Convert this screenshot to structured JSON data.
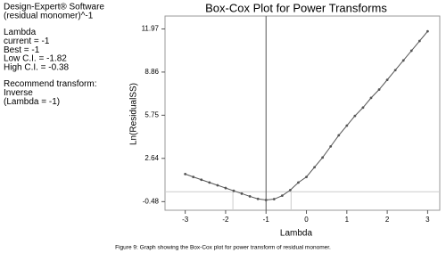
{
  "side_text": [
    [
      "Design-Expert® Software",
      "(residual monomer)^-1"
    ],
    [
      "Lambda",
      "current = -1",
      "Best = -1",
      "Low C.I. = -1.82",
      "High C.I. = -0.38"
    ],
    [
      "Recommend transform:",
      "Inverse",
      "(Lambda = -1)"
    ]
  ],
  "caption": "Figure 9: Graph showing the Box-Cox plot for power transform of residual monomer.",
  "chart_data": {
    "type": "line",
    "title": "Box-Cox Plot for Power Transforms",
    "x_label": "Lambda",
    "y_label": "Ln(ResidualSS)",
    "x": [
      -3,
      -2.8,
      -2.6,
      -2.4,
      -2.2,
      -2,
      -1.8,
      -1.6,
      -1.4,
      -1.2,
      -1,
      -0.8,
      -0.6,
      -0.4,
      -0.2,
      0,
      0.2,
      0.4,
      0.6,
      0.8,
      1,
      1.2,
      1.4,
      1.6,
      1.8,
      2,
      2.2,
      2.4,
      2.6,
      2.8,
      3
    ],
    "series": [
      {
        "name": "Ln(ResidualSS)",
        "color": "#555555",
        "values": [
          1.51,
          1.3,
          1.1,
          0.9,
          0.7,
          0.5,
          0.3,
          0.1,
          -0.1,
          -0.28,
          -0.36,
          -0.3,
          -0.05,
          0.35,
          0.9,
          1.3,
          2.0,
          2.7,
          3.5,
          4.3,
          5.0,
          5.7,
          6.3,
          7.0,
          7.6,
          8.3,
          9.0,
          9.7,
          10.4,
          11.1,
          11.8
        ]
      }
    ],
    "current_lambda": -1,
    "low_ci": -1.82,
    "high_ci": -0.38,
    "ci_threshold": 0.23,
    "xlim": [
      -3.5,
      3.3
    ],
    "ylim": [
      -1.1,
      12.9
    ],
    "xticks": [
      -3,
      -2,
      -1,
      0,
      1,
      2,
      3
    ],
    "yticks": [
      -0.48,
      2.64,
      5.75,
      8.86,
      11.97
    ]
  }
}
